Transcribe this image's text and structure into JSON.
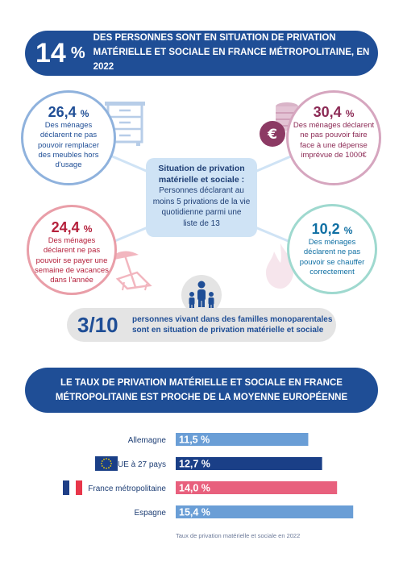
{
  "header": {
    "big_value": "14",
    "big_unit": "%",
    "line1": "DES PERSONNES SONT EN SITUATION DE PRIVATION",
    "line2": "MATÉRIELLE ET SOCIALE EN FRANCE MÉTROPOLITAINE, EN 2022"
  },
  "circles": [
    {
      "value": "26,4",
      "unit": "%",
      "lines": [
        "Des ménages",
        "déclarent ne pas",
        "pouvoir remplacer",
        "des meubles hors",
        "d'usage"
      ],
      "icon": "furniture-icon"
    },
    {
      "value": "30,4",
      "unit": "%",
      "lines": [
        "Des ménages déclarent",
        "ne pas pouvoir faire",
        "face à une dépense",
        "imprévue de 1000€"
      ],
      "icon": "coins-icon"
    },
    {
      "value": "24,4",
      "unit": "%",
      "lines": [
        "Des ménages",
        "déclarent ne pas",
        "pouvoir se payer une",
        "semaine de vacances",
        "dans l'année"
      ],
      "icon": "beach-icon"
    },
    {
      "value": "10,2",
      "unit": "%",
      "lines": [
        "Des ménages",
        "déclarent ne pas",
        "pouvoir se chauffer",
        "correctement"
      ],
      "icon": "flame-icon"
    }
  ],
  "definition": {
    "title_lines": [
      "Situation de privation",
      "matérielle et sociale :"
    ],
    "body_lines": [
      "Personnes déclarant au",
      "moins 5 privations de la vie",
      "quotidienne parmi une",
      "liste de 13"
    ]
  },
  "single_parent": {
    "value": "3/10",
    "line1": "personnes vivant dans des familles monoparentales",
    "line2": "sont en situation de privation matérielle et sociale",
    "icon": "family-icon"
  },
  "section": {
    "line1": "LE TAUX DE PRIVATION MATÉRIELLE ET SOCIALE EN FRANCE",
    "line2": "MÉTROPOLITAINE EST PROCHE DE LA MOYENNE EUROPÉENNE"
  },
  "chart_data": {
    "type": "bar",
    "orientation": "horizontal",
    "categories": [
      "Allemagne",
      "UE à 27 pays",
      "France métropolitaine",
      "Espagne"
    ],
    "values": [
      11.5,
      12.7,
      14.0,
      15.4
    ],
    "value_labels": [
      "11,5 %",
      "12,7 %",
      "14,0 %",
      "15,4 %"
    ],
    "bar_colors": [
      "#6a9ed6",
      "#1a3f87",
      "#e8607d",
      "#6a9ed6"
    ],
    "flags": [
      "",
      "eu-flag-icon",
      "france-flag-icon",
      ""
    ],
    "note": "Taux de privation matérielle et sociale en 2022"
  }
}
